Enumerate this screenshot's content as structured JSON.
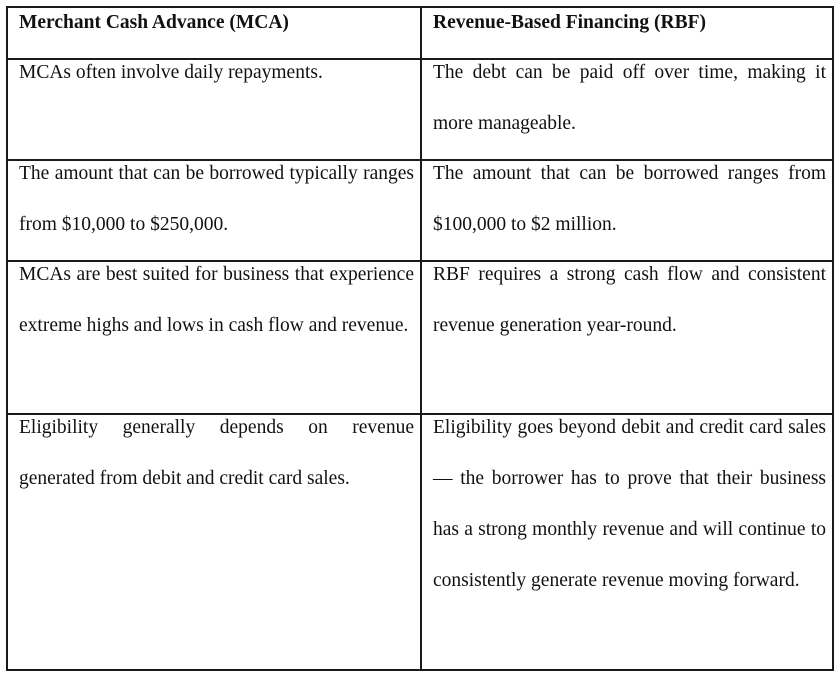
{
  "table": {
    "headers": [
      "Merchant Cash Advance (MCA)",
      "Revenue-Based Financing (RBF)"
    ],
    "rows": [
      {
        "mca": "MCAs often involve daily repayments.",
        "rbf": "The debt can be paid off over time, making it more manageable."
      },
      {
        "mca": "The amount that can be borrowed typically ranges from $10,000 to $250,000.",
        "rbf": "The amount that can be borrowed ranges from $100,000 to $2 million."
      },
      {
        "mca": "MCAs are best suited for business that experience extreme highs and lows in cash flow and revenue.",
        "rbf": "RBF requires a strong cash flow and consistent revenue generation year-round."
      },
      {
        "mca": "Eligibility generally depends on revenue generated from debit and credit card sales.",
        "rbf": "Eligibility goes beyond debit and credit card sales — the borrower has to prove that their business has a strong monthly revenue and will continue to consistently generate revenue moving forward."
      }
    ]
  }
}
